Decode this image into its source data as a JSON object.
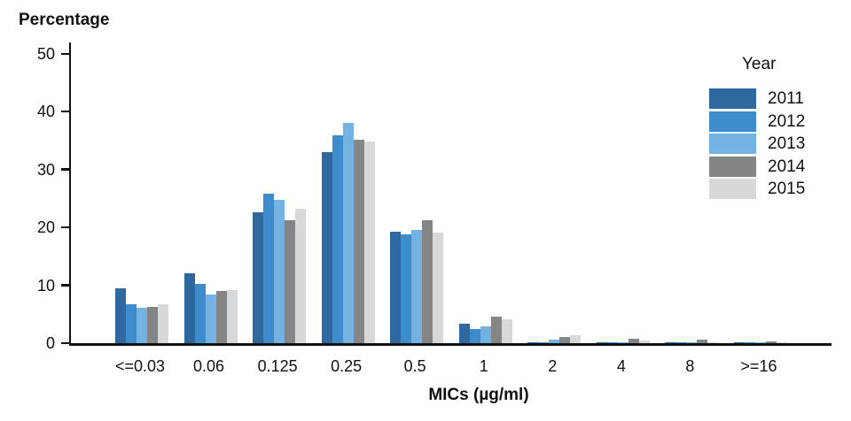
{
  "chart_data": {
    "type": "bar",
    "title": "Percentage",
    "xlabel": "MICs (µg/ml)",
    "legend_title": "Year",
    "legend_position": "top-right",
    "grid": false,
    "ylim": [
      0,
      50
    ],
    "yticks": [
      0,
      10,
      20,
      30,
      40,
      50
    ],
    "categories": [
      "<=0.03",
      "0.06",
      "0.125",
      "0.25",
      "0.5",
      "1",
      "2",
      "4",
      "8",
      ">=16"
    ],
    "series": [
      {
        "name": "2011",
        "color": "#2F689E",
        "values": [
          9.5,
          12.1,
          22.7,
          33.0,
          19.2,
          3.3,
          0.1,
          0.1,
          0.1,
          0.1
        ]
      },
      {
        "name": "2012",
        "color": "#3E8CCB",
        "values": [
          6.7,
          10.3,
          25.9,
          36.0,
          18.8,
          2.4,
          0.2,
          0.1,
          0.1,
          0.1
        ]
      },
      {
        "name": "2013",
        "color": "#73B2E2",
        "values": [
          6.1,
          8.4,
          24.7,
          38.0,
          19.5,
          2.9,
          0.6,
          0.1,
          0.1,
          0.2
        ]
      },
      {
        "name": "2014",
        "color": "#858585",
        "values": [
          6.3,
          9.0,
          21.2,
          35.1,
          21.3,
          4.6,
          1.0,
          0.8,
          0.6,
          0.3
        ]
      },
      {
        "name": "2015",
        "color": "#D7D8DA",
        "values": [
          6.8,
          9.2,
          23.3,
          34.9,
          19.1,
          4.2,
          1.4,
          0.4,
          0.2,
          0.2
        ]
      }
    ]
  }
}
